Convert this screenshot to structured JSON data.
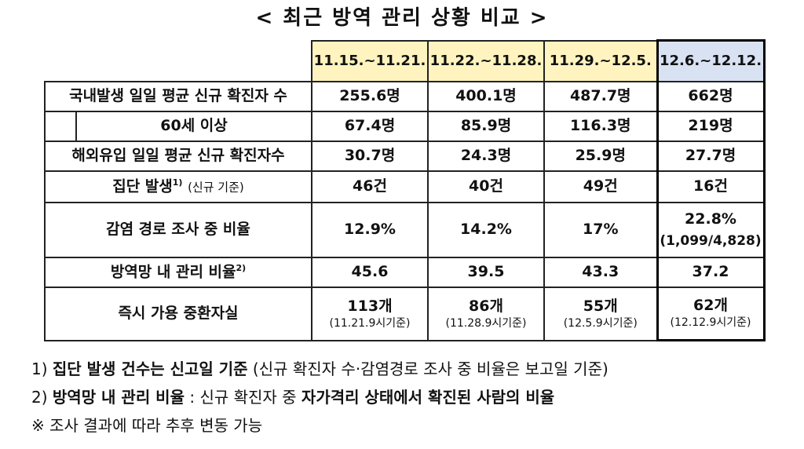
{
  "title": "< 최근 방역 관리 상황 비교 >",
  "headers": [
    "11.15.~11.21.",
    "11.22.~11.28.",
    "11.29.~12.5.",
    "12.6.~12.12."
  ],
  "rows": {
    "domestic": {
      "label": "국내발생 일일 평균 신규 확진자 수",
      "values": [
        "255.6명",
        "400.1명",
        "487.7명",
        "662명"
      ]
    },
    "over60": {
      "label": "60세 이상",
      "values": [
        "67.4명",
        "85.9명",
        "116.3명",
        "219명"
      ]
    },
    "imported": {
      "label": "해외유입 일일 평균 신규 확진자수",
      "values": [
        "30.7명",
        "24.3명",
        "25.9명",
        "27.7명"
      ]
    },
    "cluster": {
      "label": "집단 발생",
      "sup": "1)",
      "note": "(신규 기준)",
      "values": [
        "46건",
        "40건",
        "49건",
        "16건"
      ]
    },
    "tracing": {
      "label": "감염 경로 조사 중 비율",
      "values": [
        "12.9%",
        "14.2%",
        "17%",
        "22.8%"
      ],
      "last_sub": "(1,099/4,828)"
    },
    "managed": {
      "label": "방역망 내 관리 비율",
      "sup": "2)",
      "values": [
        "45.6",
        "39.5",
        "43.3",
        "37.2"
      ]
    },
    "beds": {
      "label": "즉시 가용 중환자실",
      "values": [
        "113개",
        "86개",
        "55개",
        "62개"
      ],
      "subs": [
        "(11.21.9시기준)",
        "(11.28.9시기준)",
        "(12.5.9시기준)",
        "(12.12.9시기준)"
      ]
    }
  },
  "notes": {
    "n1_prefix": "1)",
    "n1_bold": "집단 발생 건수는 신고일 기준",
    "n1_rest": "(신규 확진자 수·감염경로 조사 중 비율은 보고일 기준)",
    "n2_prefix": "2)",
    "n2_bold": "방역망 내 관리 비율",
    "n2_mid": ": 신규 확진자 중",
    "n2_bold2": "자가격리 상태에서 확진된 사람의 비율",
    "n3": "※ 조사 결과에 따라 추후 변동 가능"
  }
}
